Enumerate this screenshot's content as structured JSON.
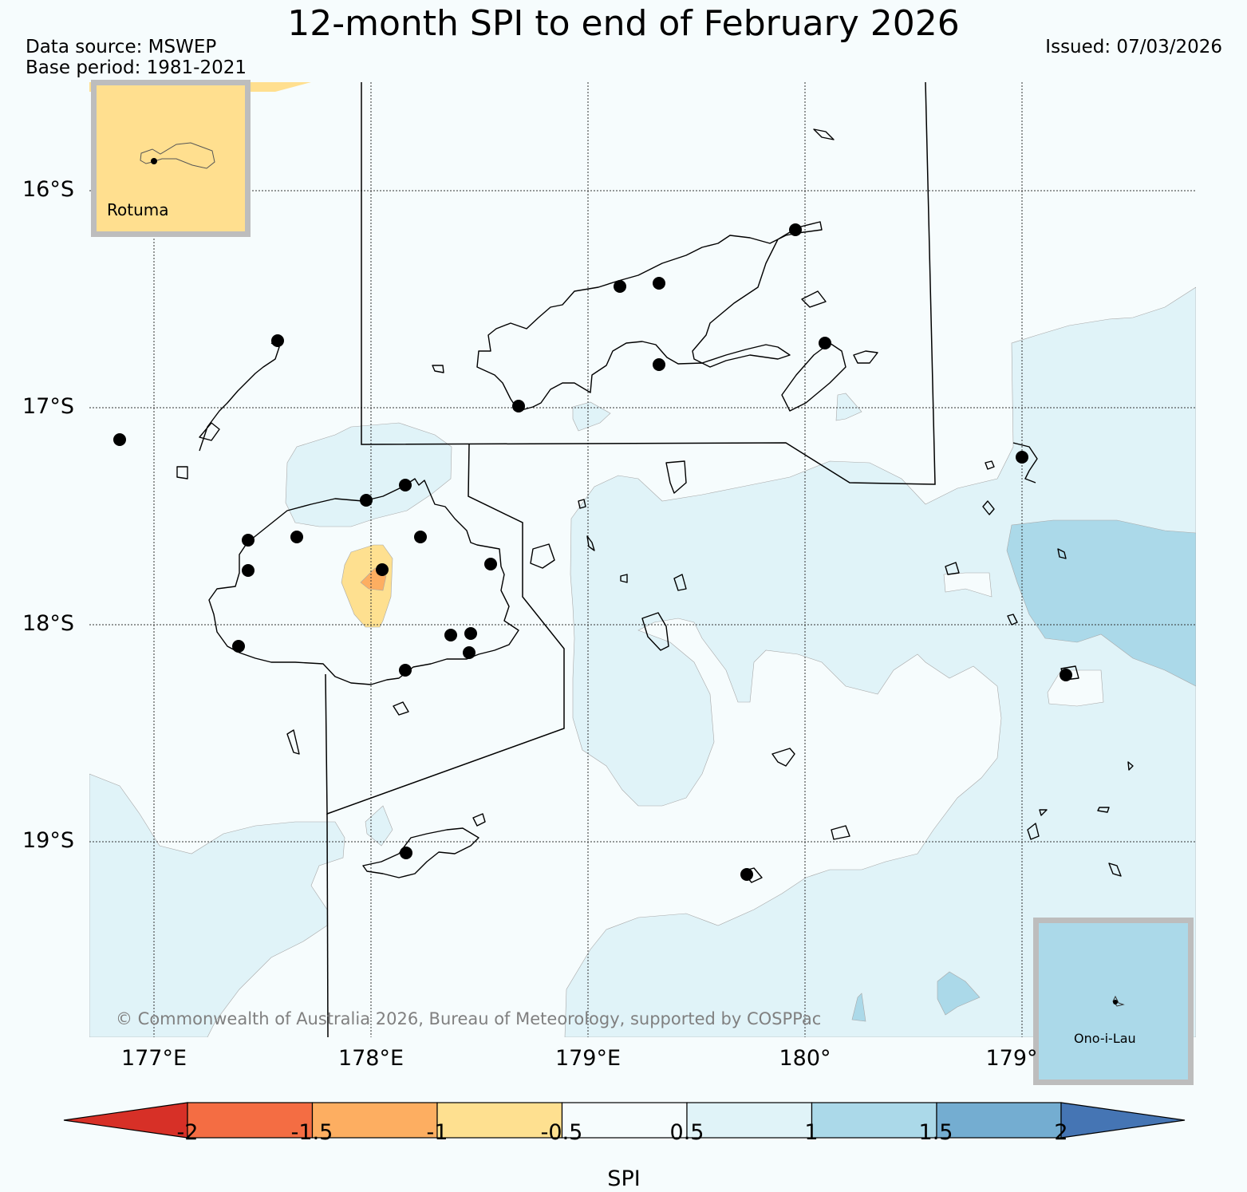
{
  "header": {
    "title": "12-month SPI to end of February 2026",
    "data_source": "Data source: MSWEP",
    "base_period": "Base period: 1981-2021",
    "issued": "Issued: 07/03/2026"
  },
  "insets": {
    "rotuma": {
      "label": "Rotuma",
      "fill": "#ffdf8f"
    },
    "ono_i_lau": {
      "label": "Ono-i-Lau",
      "fill": "#abd9e9"
    }
  },
  "axes": {
    "latitudes": [
      "16°S",
      "17°S",
      "18°S",
      "19°S"
    ],
    "longitudes": [
      "177°E",
      "178°E",
      "179°E",
      "180°",
      "179°"
    ]
  },
  "copyright": "© Commonwealth of Australia 2026, Bureau of Meteorology, supported by COSPPac",
  "colorbar": {
    "label": "SPI",
    "ticks": [
      "-2",
      "-1.5",
      "-1",
      "-0.5",
      "0.5",
      "1",
      "1.5",
      "2"
    ],
    "colors": [
      "#d73027",
      "#f46d43",
      "#fdae61",
      "#fee090",
      "#f6fcfd",
      "#e0f3f8",
      "#abd9e9",
      "#74add1",
      "#4575b4"
    ]
  },
  "legend_colors": {
    "ocean_base": "#f6fcfd",
    "spi_0_5_to_1": "#e0f3f8",
    "spi_1_to_1_5": "#abd9e9",
    "spi_m1_to_m0_5": "#fee090",
    "spi_m1_5_to_m1": "#fdae61"
  }
}
